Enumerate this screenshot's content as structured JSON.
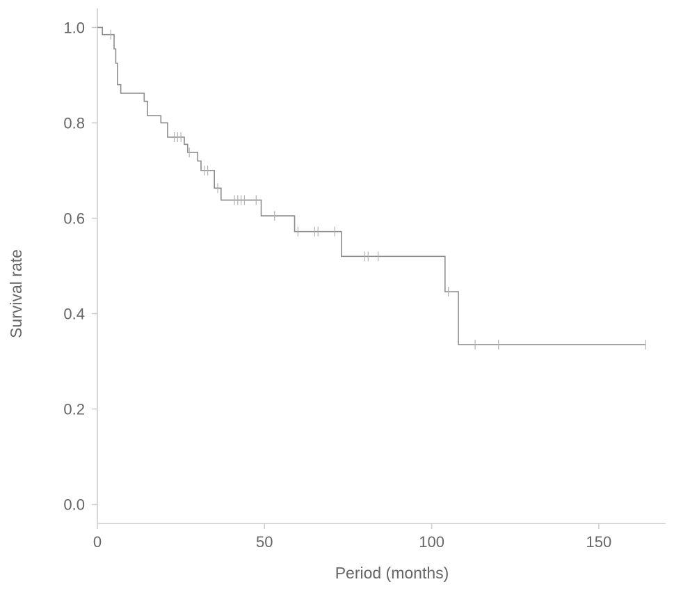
{
  "chart_data": {
    "type": "line",
    "xlabel": "Period (months)",
    "ylabel": "Survival rate",
    "xlim": [
      0,
      170
    ],
    "ylim": [
      -0.04,
      1.04
    ],
    "xticks": [
      0,
      50,
      100,
      150
    ],
    "xtick_labels": [
      "0",
      "50",
      "100",
      "150"
    ],
    "yticks": [
      0.0,
      0.2,
      0.4,
      0.6,
      0.8,
      1.0
    ],
    "ytick_labels": [
      "0.0",
      "0.2",
      "0.4",
      "0.6",
      "0.8",
      "1.0"
    ],
    "grid": false,
    "line_color": "#8c8c8c",
    "axis_color": "#cccccc",
    "series": [
      {
        "step": "post",
        "x": [
          0,
          1.5,
          5,
          5.5,
          6,
          7,
          8,
          14,
          15,
          16,
          19,
          21,
          22,
          23,
          26,
          27,
          30,
          31,
          35,
          37,
          47,
          49,
          59,
          61,
          73,
          104,
          108,
          164
        ],
        "y": [
          1.0,
          0.985,
          0.955,
          0.925,
          0.88,
          0.862,
          0.862,
          0.845,
          0.815,
          0.815,
          0.8,
          0.77,
          0.77,
          0.77,
          0.755,
          0.738,
          0.72,
          0.7,
          0.663,
          0.638,
          0.638,
          0.605,
          0.572,
          0.572,
          0.52,
          0.446,
          0.335,
          0.335
        ],
        "censored": [
          {
            "x": 4,
            "y": 0.985
          },
          {
            "x": 23,
            "y": 0.77
          },
          {
            "x": 24,
            "y": 0.77
          },
          {
            "x": 25,
            "y": 0.77
          },
          {
            "x": 27.5,
            "y": 0.738
          },
          {
            "x": 32,
            "y": 0.7
          },
          {
            "x": 33,
            "y": 0.7
          },
          {
            "x": 36,
            "y": 0.663
          },
          {
            "x": 41,
            "y": 0.638
          },
          {
            "x": 42,
            "y": 0.638
          },
          {
            "x": 43,
            "y": 0.638
          },
          {
            "x": 44,
            "y": 0.638
          },
          {
            "x": 47.5,
            "y": 0.638
          },
          {
            "x": 53,
            "y": 0.605
          },
          {
            "x": 60,
            "y": 0.572
          },
          {
            "x": 65,
            "y": 0.572
          },
          {
            "x": 66,
            "y": 0.572
          },
          {
            "x": 71,
            "y": 0.572
          },
          {
            "x": 80,
            "y": 0.52
          },
          {
            "x": 81,
            "y": 0.52
          },
          {
            "x": 84,
            "y": 0.52
          },
          {
            "x": 105,
            "y": 0.446
          },
          {
            "x": 113,
            "y": 0.335
          },
          {
            "x": 120,
            "y": 0.335
          },
          {
            "x": 164,
            "y": 0.335
          }
        ]
      }
    ]
  }
}
